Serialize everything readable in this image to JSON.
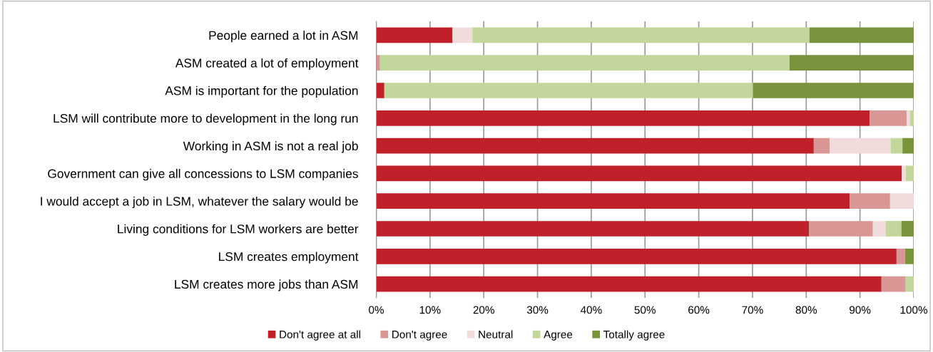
{
  "chart_data": {
    "type": "bar",
    "orientation": "horizontal",
    "stacked": true,
    "categories": [
      "People earned a lot in ASM",
      "ASM created a lot of employment",
      "ASM is important for the population",
      "LSM will contribute more to development in the long run",
      "Working in ASM is not a real job",
      "Government can give all concessions to LSM companies",
      "I would accept a job in LSM, whatever the salary would be",
      "Living conditions for LSM workers are better",
      "LSM creates employment",
      "LSM creates more jobs than ASM"
    ],
    "series": [
      {
        "name": "Don't agree at all",
        "color": "#c0202a",
        "values": [
          14.2,
          0,
          1.5,
          91.8,
          81.4,
          97.8,
          88.1,
          80.5,
          96.8,
          94.0
        ]
      },
      {
        "name": "Don't agree",
        "color": "#d99694",
        "values": [
          0,
          0.7,
          0,
          6.9,
          3.0,
          0,
          7.5,
          11.9,
          1.6,
          4.5
        ]
      },
      {
        "name": "Neutral",
        "color": "#f2dcdb",
        "values": [
          3.7,
          0,
          0,
          0.6,
          11.3,
          0.7,
          4.4,
          2.4,
          0,
          0
        ]
      },
      {
        "name": "Agree",
        "color": "#c3d69b",
        "values": [
          62.7,
          76.2,
          68.6,
          0.7,
          2.2,
          1.5,
          0,
          2.9,
          0,
          1.5
        ]
      },
      {
        "name": "Totally agree",
        "color": "#77933c",
        "values": [
          19.4,
          23.1,
          29.9,
          0,
          2.1,
          0,
          0,
          2.3,
          1.6,
          0
        ]
      }
    ],
    "xlim": [
      0,
      100
    ],
    "xticks": [
      {
        "value": 0,
        "label": "0%"
      },
      {
        "value": 10,
        "label": "10%"
      },
      {
        "value": 20,
        "label": "20%"
      },
      {
        "value": 30,
        "label": "30%"
      },
      {
        "value": 40,
        "label": "40%"
      },
      {
        "value": 50,
        "label": "50%"
      },
      {
        "value": 60,
        "label": "60%"
      },
      {
        "value": 70,
        "label": "70%"
      },
      {
        "value": 80,
        "label": "80%"
      },
      {
        "value": 90,
        "label": "90%"
      },
      {
        "value": 100,
        "label": "100%"
      }
    ],
    "grid": "x",
    "legend": "bottom"
  }
}
